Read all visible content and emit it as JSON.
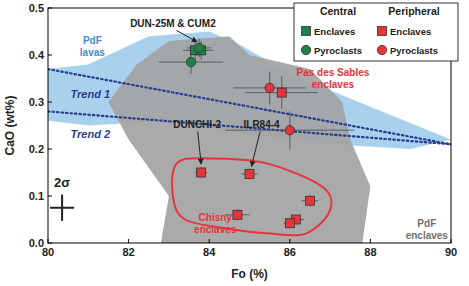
{
  "chart_data": {
    "type": "scatter",
    "x_label": "Fo (%)",
    "y_label": "CaO (wt%)",
    "xlim": [
      80,
      90
    ],
    "ylim": [
      0,
      0.5
    ],
    "xticks": [
      80,
      82,
      84,
      86,
      88,
      90
    ],
    "yticks": [
      {
        "value": 0,
        "label": "0.0"
      },
      0.1,
      0.2,
      0.3,
      0.4,
      0.5
    ],
    "legend": "upper right",
    "series": [
      {
        "name": "Enclaves",
        "group": "Central",
        "color": "#1f8048",
        "marker": "square",
        "x": [
          83.65,
          83.8
        ],
        "y": [
          0.41,
          0.41
        ],
        "xerr": [
          0.3,
          0.3
        ],
        "yerr": [
          0.02,
          0.02
        ]
      },
      {
        "name": "Pyroclasts",
        "group": "Central",
        "color": "#1f8048",
        "marker": "circle",
        "x": [
          83.55,
          83.75
        ],
        "y": [
          0.385,
          0.415
        ],
        "xerr": [
          0.8,
          0.3
        ],
        "yerr": [
          0.025,
          0.02
        ]
      },
      {
        "name": "Enclaves",
        "group": "Peripheral",
        "color": "#e5343b",
        "marker": "square",
        "x": [
          85.8,
          83.8,
          85.0,
          84.7,
          86.5,
          86.15,
          86.0
        ],
        "y": [
          0.32,
          0.15,
          0.147,
          0.06,
          0.09,
          0.05,
          0.042
        ],
        "xerr": [
          0.9,
          0.15,
          0.2,
          0.3,
          0.2,
          0.2,
          0.15
        ],
        "yerr": [
          0.035,
          0.012,
          0.012,
          0.012,
          0.012,
          0.01,
          0.01
        ]
      },
      {
        "name": "Pyroclasts",
        "group": "Peripheral",
        "color": "#e5343b",
        "marker": "circle",
        "x": [
          85.5,
          86.0
        ],
        "y": [
          0.33,
          0.24
        ],
        "xerr": [
          0.9,
          1.6
        ],
        "yerr": [
          0.035,
          0.04
        ]
      }
    ],
    "regions": [
      {
        "type": "area",
        "color": "#a9d1ee",
        "x": [
          80,
          81,
          82.5,
          84,
          84.8,
          86,
          88,
          90,
          89,
          87,
          85,
          83,
          81,
          80
        ],
        "y": [
          0.37,
          0.38,
          0.44,
          0.45,
          0.42,
          0.36,
          0.29,
          0.22,
          0.2,
          0.21,
          0.23,
          0.26,
          0.25,
          0.26
        ]
      },
      {
        "type": "area",
        "color": "#a3a3a3",
        "x": [
          83.0,
          84.5,
          85.0,
          86.5,
          87.3,
          87.5,
          88.0,
          87.8,
          82.8,
          83.0,
          82.0,
          81.5,
          82.2
        ],
        "y": [
          0.43,
          0.44,
          0.4,
          0.37,
          0.3,
          0.22,
          0.12,
          0.0,
          0.0,
          0.1,
          0.22,
          0.3,
          0.38
        ]
      },
      {
        "type": "outline",
        "color": "#e5343b",
        "x": [
          83.2,
          84.0,
          85.4,
          86.8,
          87.0,
          86.4,
          85.5,
          84.5,
          83.4,
          83.1
        ],
        "y": [
          0.17,
          0.18,
          0.17,
          0.12,
          0.07,
          0.02,
          0.02,
          0.03,
          0.05,
          0.1
        ]
      }
    ],
    "trends": [
      {
        "name": "Trend 1",
        "color": "#2a3d8f",
        "line_style": "dotted",
        "x": [
          80,
          90
        ],
        "y": [
          0.37,
          0.21
        ],
        "label_x": 81.05,
        "label_y": 0.315
      },
      {
        "name": "Trend 2",
        "color": "#2a3d8f",
        "line_style": "dotted",
        "x": [
          80,
          90
        ],
        "y": [
          0.28,
          0.21
        ],
        "label_x": 81.05,
        "label_y": 0.23
      }
    ],
    "annotations": [
      {
        "lines": [
          "DUN-25M & CUM2"
        ],
        "x": 83.1,
        "y": 0.465,
        "color": "#222222",
        "arrow": [
          83.7,
          0.428
        ]
      },
      {
        "lines": [
          "Pas des Sables",
          "enclaves"
        ],
        "x": 87.07,
        "y": 0.36,
        "color": "#e5343b"
      },
      {
        "lines": [
          "Chisny",
          "enclaves"
        ],
        "x": 84.15,
        "y": 0.052,
        "color": "#e5343b"
      },
      {
        "lines": [
          "DUNCHI-2"
        ],
        "x": 83.7,
        "y": 0.25,
        "color": "#222222",
        "arrow": [
          83.8,
          0.168
        ]
      },
      {
        "lines": [
          "ILR84-4"
        ],
        "x": 85.3,
        "y": 0.25,
        "color": "#222222",
        "arrow": [
          85.05,
          0.163
        ]
      },
      {
        "lines": [
          "PdF",
          "lavas"
        ],
        "x": 81.1,
        "y": 0.43,
        "color": "#3f8ccc"
      },
      {
        "lines": [
          "PdF",
          "enclaves"
        ],
        "x": 89.4,
        "y": 0.04,
        "color": "#6f6f6f"
      }
    ],
    "two_sigma": {
      "label": "2σ",
      "x": 80.35,
      "y": 0.075,
      "xerr": 0.3,
      "yerr": 0.028
    }
  }
}
